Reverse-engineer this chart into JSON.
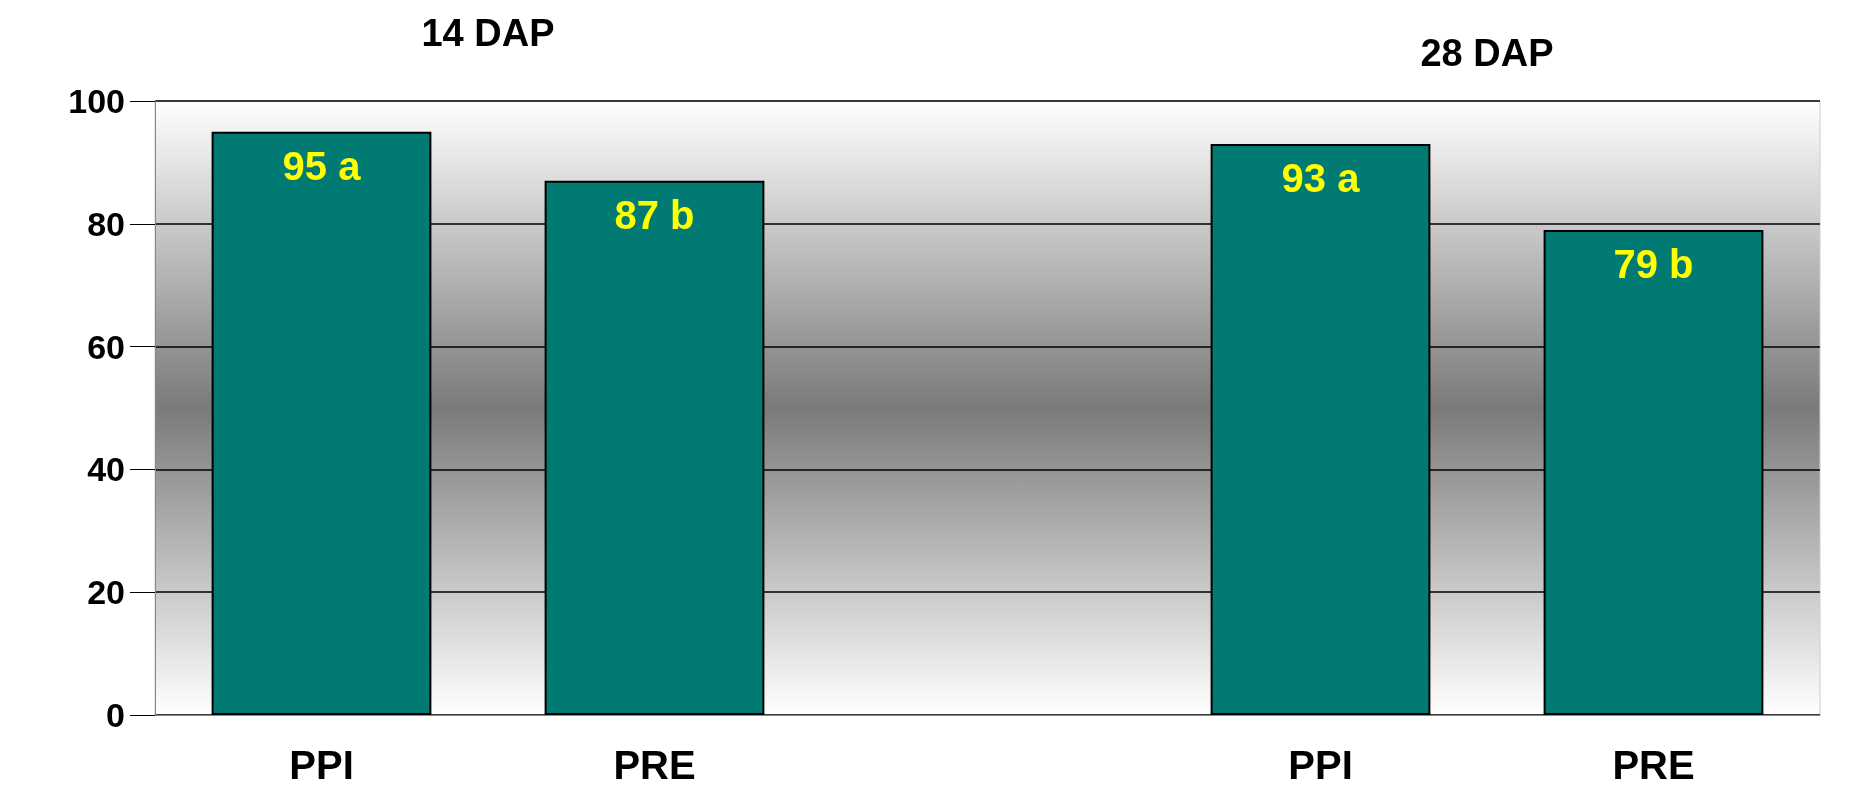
{
  "chart_data": {
    "type": "bar",
    "categories": [
      "PPI",
      "PRE",
      null,
      "PPI",
      "PRE"
    ],
    "values": [
      95,
      87,
      null,
      93,
      79
    ],
    "value_labels": [
      "95 a",
      "87 b",
      null,
      "93 a",
      "79 b"
    ],
    "color": "#007a73",
    "ylim": [
      0,
      100
    ],
    "yticks": [
      0,
      20,
      40,
      60,
      80,
      100
    ],
    "grid": "y",
    "annotations": [
      "14 DAP",
      "28 DAP"
    ]
  }
}
